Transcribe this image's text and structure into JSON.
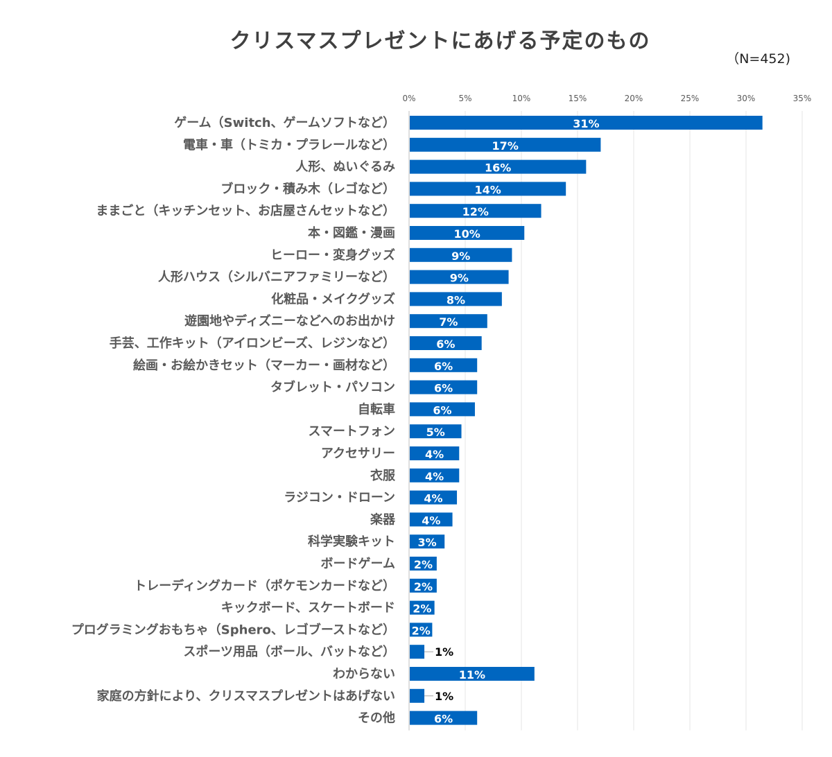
{
  "chart_data": {
    "type": "bar",
    "orientation": "horizontal",
    "title": "クリスマスプレゼントにあげる予定のもの",
    "subtitle": "（N=452)",
    "xlim": [
      0,
      35
    ],
    "xticks": [
      "0%",
      "5%",
      "10%",
      "15%",
      "20%",
      "25%",
      "30%",
      "35%"
    ],
    "grid": true,
    "bar_color": "#0066C0",
    "categories": [
      "ゲーム（Switch、ゲームソフトなど）",
      "電車・車（トミカ・プラレールなど）",
      "人形、ぬいぐるみ",
      "ブロック・積み木（レゴなど）",
      "ままごと（キッチンセット、お店屋さんセットなど）",
      "本・図鑑・漫画",
      "ヒーロー・変身グッズ",
      "人形ハウス（シルバニアファミリーなど）",
      "化粧品・メイクグッズ",
      "遊園地やディズニーなどへのお出かけ",
      "手芸、工作キット（アイロンビーズ、レジンなど）",
      "絵画・お絵かきセット（マーカー・画材など）",
      "タブレット・パソコン",
      "自転車",
      "スマートフォン",
      "アクセサリー",
      "衣服",
      "ラジコン・ドローン",
      "楽器",
      "科学実験キット",
      "ボードゲーム",
      "トレーディングカード（ポケモンカードなど）",
      "キックボード、スケートボード",
      "プログラミングおもちゃ（Sphero、レゴブーストなど）",
      "スポーツ用品（ボール、バットなど）",
      "わからない",
      "家庭の方針により、クリスマスプレゼントはあげない",
      "その他"
    ],
    "values": [
      31.4,
      17.0,
      15.7,
      13.9,
      11.7,
      10.2,
      9.1,
      8.8,
      8.2,
      6.9,
      6.4,
      6.0,
      6.0,
      5.8,
      4.6,
      4.4,
      4.4,
      4.2,
      3.8,
      3.1,
      2.4,
      2.4,
      2.2,
      2.0,
      1.3,
      11.1,
      1.3,
      6.0
    ],
    "data_labels": [
      "31%",
      "17%",
      "16%",
      "14%",
      "12%",
      "10%",
      "9%",
      "9%",
      "8%",
      "7%",
      "6%",
      "6%",
      "6%",
      "6%",
      "5%",
      "4%",
      "4%",
      "4%",
      "4%",
      "3%",
      "2%",
      "2%",
      "2%",
      "2%",
      "1%",
      "11%",
      "1%",
      "6%"
    ]
  }
}
